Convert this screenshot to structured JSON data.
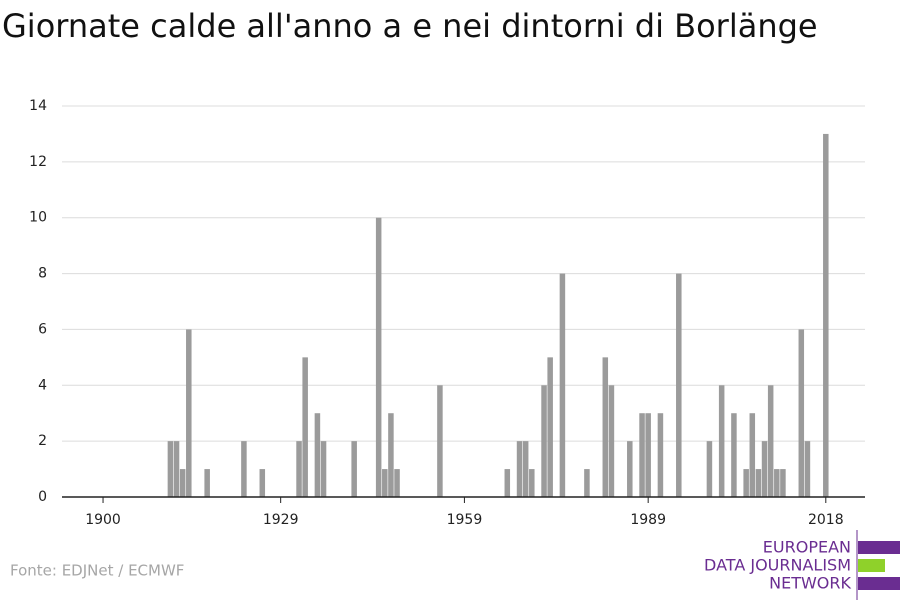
{
  "chart_data": {
    "type": "bar",
    "title": "Giornate calde all'anno a e nei dintorni di Borlänge",
    "x": [
      1911,
      1912,
      1913,
      1914,
      1917,
      1923,
      1926,
      1932,
      1933,
      1935,
      1936,
      1941,
      1945,
      1946,
      1947,
      1948,
      1955,
      1966,
      1968,
      1969,
      1970,
      1972,
      1973,
      1975,
      1979,
      1982,
      1983,
      1986,
      1988,
      1989,
      1991,
      1994,
      1999,
      2001,
      2003,
      2005,
      2006,
      2007,
      2008,
      2009,
      2010,
      2011,
      2014,
      2015,
      2018
    ],
    "values": [
      2,
      2,
      1,
      6,
      1,
      2,
      1,
      2,
      5,
      3,
      2,
      2,
      10,
      1,
      3,
      1,
      4,
      1,
      2,
      2,
      1,
      4,
      5,
      8,
      1,
      5,
      4,
      2,
      3,
      3,
      3,
      8,
      2,
      4,
      3,
      1,
      3,
      1,
      2,
      4,
      1,
      1,
      6,
      2,
      13
    ],
    "color": "#9b9b9b",
    "xlim": [
      1893.3,
      2024.4
    ],
    "xticks": [
      1900,
      1929,
      1959,
      1989,
      2018
    ],
    "ylim": [
      0,
      14
    ],
    "yticks": [
      0,
      2,
      4,
      6,
      8,
      10,
      12,
      14
    ],
    "grid": true,
    "source": "Fonte: EDJNet / ECMWF"
  },
  "logo": {
    "lines": [
      "EUROPEAN",
      "DATA JOURNALISM",
      "NETWORK"
    ]
  }
}
